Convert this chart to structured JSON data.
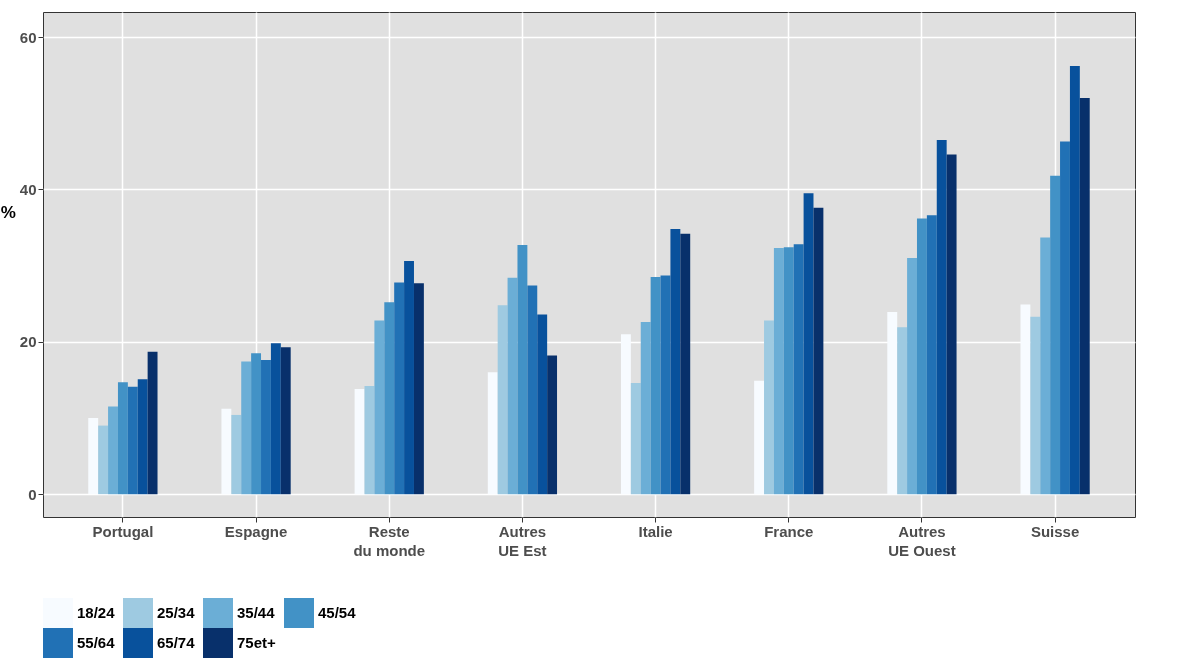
{
  "chart_data": {
    "type": "bar",
    "ylabel": "%",
    "categories": [
      "Portugal",
      "Espagne",
      "Reste\ndu monde",
      "Autres\nUE Est",
      "Italie",
      "France",
      "Autres\nUE Ouest",
      "Suisse"
    ],
    "series": [
      {
        "name": "18/24",
        "color": "#f7fbff",
        "values": [
          10.0,
          11.2,
          13.8,
          16.0,
          21.0,
          14.9,
          23.9,
          24.9
        ]
      },
      {
        "name": "25/34",
        "color": "#9ecae1",
        "values": [
          9.0,
          10.4,
          14.2,
          24.8,
          14.6,
          22.8,
          21.9,
          23.3
        ]
      },
      {
        "name": "35/44",
        "color": "#6baed6",
        "values": [
          11.5,
          17.4,
          22.8,
          28.4,
          22.6,
          32.3,
          31.0,
          33.7
        ]
      },
      {
        "name": "45/54",
        "color": "#4292c6",
        "values": [
          14.7,
          18.5,
          25.2,
          32.7,
          28.5,
          32.4,
          36.2,
          41.8
        ]
      },
      {
        "name": "55/64",
        "color": "#2171b5",
        "values": [
          14.1,
          17.6,
          27.8,
          27.4,
          28.7,
          32.8,
          36.6,
          46.3
        ]
      },
      {
        "name": "65/74",
        "color": "#08519c",
        "values": [
          15.1,
          19.8,
          30.6,
          23.6,
          34.8,
          39.5,
          46.5,
          56.2
        ]
      },
      {
        "name": "75et+",
        "color": "#08306b",
        "values": [
          18.7,
          19.3,
          27.7,
          18.2,
          34.2,
          37.6,
          44.6,
          52.0
        ]
      }
    ],
    "ylim": [
      -3.0,
      63.3
    ],
    "yticks": [
      0,
      20,
      40,
      60
    ],
    "grid": true,
    "legend": "bottom"
  }
}
